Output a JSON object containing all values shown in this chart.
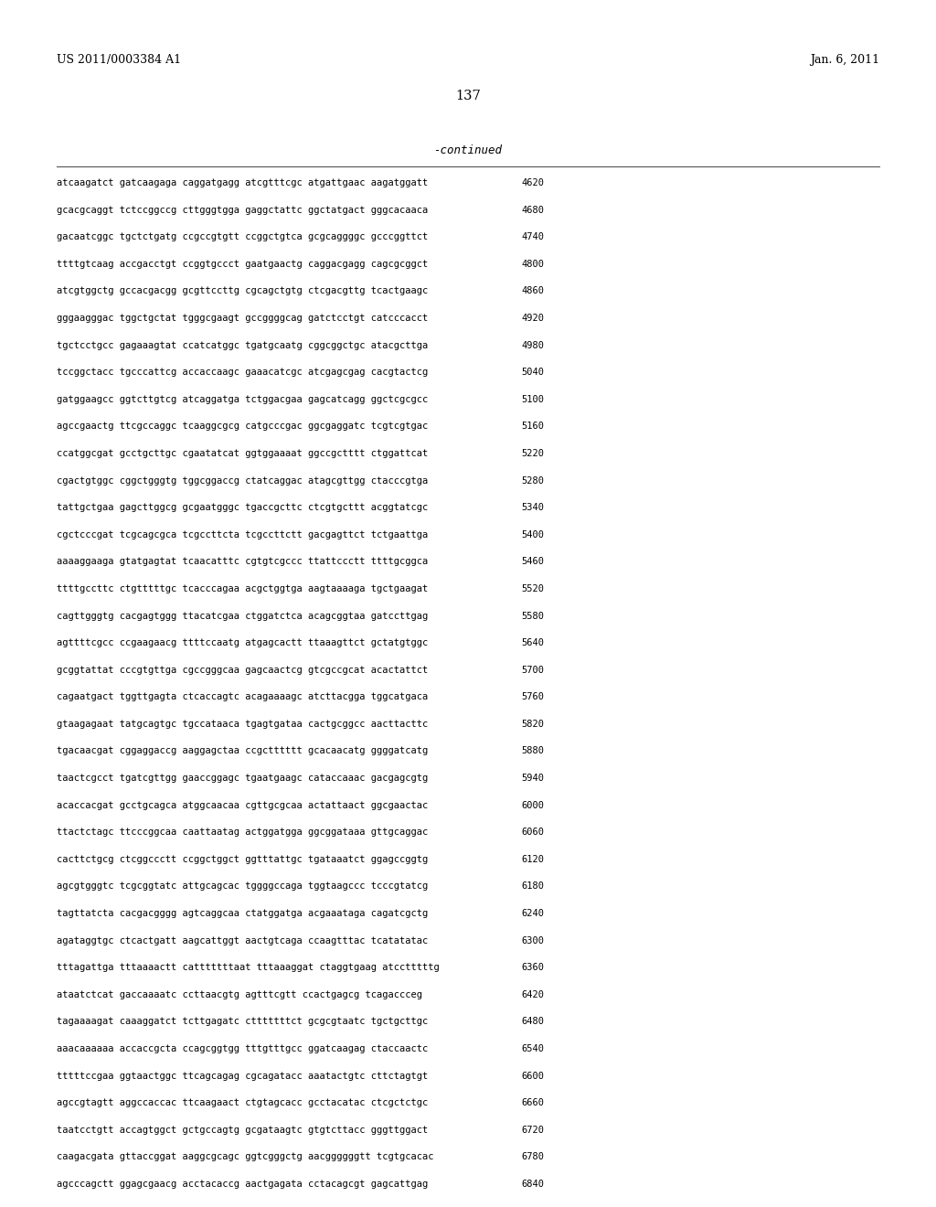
{
  "header_left": "US 2011/0003384 A1",
  "header_right": "Jan. 6, 2011",
  "page_number": "137",
  "continued_label": "-continued",
  "background_color": "#ffffff",
  "text_color": "#000000",
  "seq_font_size": 7.5,
  "header_font_size": 9.0,
  "page_num_font_size": 10.5,
  "continued_font_size": 9.0,
  "sequence_data": [
    {
      "seq": "atcaagatct gatcaagaga caggatgagg atcgtttcgc atgattgaac aagatggatt",
      "num": "4620"
    },
    {
      "seq": "gcacgcaggt tctccggccg cttgggtgga gaggctattc ggctatgact gggcacaaca",
      "num": "4680"
    },
    {
      "seq": "gacaatcggc tgctctgatg ccgccgtgtt ccggctgtca gcgcaggggc gcccggttct",
      "num": "4740"
    },
    {
      "seq": "ttttgtcaag accgacctgt ccggtgccct gaatgaactg caggacgagg cagcgcggct",
      "num": "4800"
    },
    {
      "seq": "atcgtggctg gccacgacgg gcgttccttg cgcagctgtg ctcgacgttg tcactgaagc",
      "num": "4860"
    },
    {
      "seq": "gggaagggac tggctgctat tgggcgaagt gccggggcag gatctcctgt catcccacct",
      "num": "4920"
    },
    {
      "seq": "tgctcctgcc gagaaagtat ccatcatggc tgatgcaatg cggcggctgc atacgcttga",
      "num": "4980"
    },
    {
      "seq": "tccggctacc tgcccattcg accaccaagc gaaacatcgc atcgagcgag cacgtactcg",
      "num": "5040"
    },
    {
      "seq": "gatggaagcc ggtcttgtcg atcaggatga tctggacgaa gagcatcagg ggctcgcgcc",
      "num": "5100"
    },
    {
      "seq": "agccgaactg ttcgccaggc tcaaggcgcg catgcccgac ggcgaggatc tcgtcgtgac",
      "num": "5160"
    },
    {
      "seq": "ccatggcgat gcctgcttgc cgaatatcat ggtggaaaat ggccgctttt ctggattcat",
      "num": "5220"
    },
    {
      "seq": "cgactgtggc cggctgggtg tggcggaccg ctatcaggac atagcgttgg ctacccgtga",
      "num": "5280"
    },
    {
      "seq": "tattgctgaa gagcttggcg gcgaatgggc tgaccgcttc ctcgtgcttt acggtatcgc",
      "num": "5340"
    },
    {
      "seq": "cgctcccgat tcgcagcgca tcgccttcta tcgccttctt gacgagttct tctgaattga",
      "num": "5400"
    },
    {
      "seq": "aaaaggaaga gtatgagtat tcaacatttc cgtgtcgccc ttattccctt ttttgcggca",
      "num": "5460"
    },
    {
      "seq": "ttttgccttc ctgtttttgc tcacccagaa acgctggtga aagtaaaaga tgctgaagat",
      "num": "5520"
    },
    {
      "seq": "cagttgggtg cacgagtggg ttacatcgaa ctggatctca acagcggtaa gatccttgag",
      "num": "5580"
    },
    {
      "seq": "agttttcgcc ccgaagaacg ttttccaatg atgagcactt ttaaagttct gctatgtggc",
      "num": "5640"
    },
    {
      "seq": "gcggtattat cccgtgttga cgccgggcaa gagcaactcg gtcgccgcat acactattct",
      "num": "5700"
    },
    {
      "seq": "cagaatgact tggttgagta ctcaccagtc acagaaaagc atcttacgga tggcatgaca",
      "num": "5760"
    },
    {
      "seq": "gtaagagaat tatgcagtgc tgccataaca tgagtgataa cactgcggcc aacttacttc",
      "num": "5820"
    },
    {
      "seq": "tgacaacgat cggaggaccg aaggagctaa ccgctttttt gcacaacatg ggggatcatg",
      "num": "5880"
    },
    {
      "seq": "taactcgcct tgatcgttgg gaaccggagc tgaatgaagc cataccaaac gacgagcgtg",
      "num": "5940"
    },
    {
      "seq": "acaccacgat gcctgcagca atggcaacaa cgttgcgcaa actattaact ggcgaactac",
      "num": "6000"
    },
    {
      "seq": "ttactctagc ttcccggcaa caattaatag actggatgga ggcggataaa gttgcaggac",
      "num": "6060"
    },
    {
      "seq": "cacttctgcg ctcggccctt ccggctggct ggtttattgc tgataaatct ggagccggtg",
      "num": "6120"
    },
    {
      "seq": "agcgtgggtc tcgcggtatc attgcagcac tggggccaga tggtaagccc tcccgtatcg",
      "num": "6180"
    },
    {
      "seq": "tagttatcta cacgacgggg agtcaggcaa ctatggatga acgaaataga cagatcgctg",
      "num": "6240"
    },
    {
      "seq": "agataggtgc ctcactgatt aagcattggt aactgtcaga ccaagtttac tcatatatac",
      "num": "6300"
    },
    {
      "seq": "tttagattga tttaaaactt catttttttaat tttaaaggat ctaggtgaag atcctttttg",
      "num": "6360"
    },
    {
      "seq": "ataatctcat gaccaaaatc ccttaacgtg agtttcgtt ccactgagcg tcagaccceg",
      "num": "6420"
    },
    {
      "seq": "tagaaaagat caaaggatct tcttgagatc ctttttttct gcgcgtaatc tgctgcttgc",
      "num": "6480"
    },
    {
      "seq": "aaacaaaaaa accaccgcta ccagcggtgg tttgtttgcc ggatcaagag ctaccaactc",
      "num": "6540"
    },
    {
      "seq": "tttttccgaa ggtaactggc ttcagcagag cgcagatacc aaatactgtc cttctagtgt",
      "num": "6600"
    },
    {
      "seq": "agccgtagtt aggccaccac ttcaagaact ctgtagcacc gcctacatac ctcgctctgc",
      "num": "6660"
    },
    {
      "seq": "taatcctgtt accagtggct gctgccagtg gcgataagtc gtgtcttacc gggttggact",
      "num": "6720"
    },
    {
      "seq": "caagacgata gttaccggat aaggcgcagc ggtcgggctg aacggggggtt tcgtgcacac",
      "num": "6780"
    },
    {
      "seq": "agcccagctt ggagcgaacg acctacaccg aactgagata cctacagcgt gagcattgag",
      "num": "6840"
    }
  ]
}
